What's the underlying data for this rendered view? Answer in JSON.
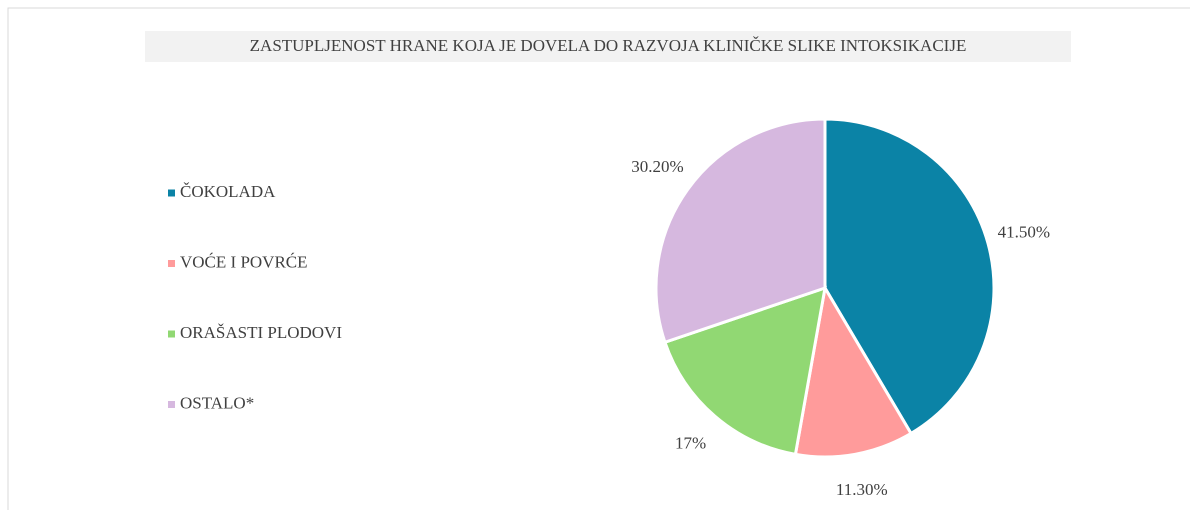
{
  "chart_data": {
    "type": "pie",
    "title": "ZASTUPLJENOST  HRANE KOJA JE DOVELA DO RAZVOJA KLINIČKE SLIKE INTOKSIKACIJE",
    "categories": [
      "ČOKOLADA",
      "VOĆE I POVRĆE",
      "ORAŠASTI PLODOVI",
      "OSTALO*"
    ],
    "values": [
      41.5,
      11.3,
      17,
      30.2
    ],
    "value_labels": [
      "41.50%",
      "11.30%",
      "17%",
      "30.20%"
    ],
    "colors": [
      "#0b83a6",
      "#ff9b9b",
      "#91d873",
      "#d6b8df"
    ],
    "legend": "left"
  }
}
